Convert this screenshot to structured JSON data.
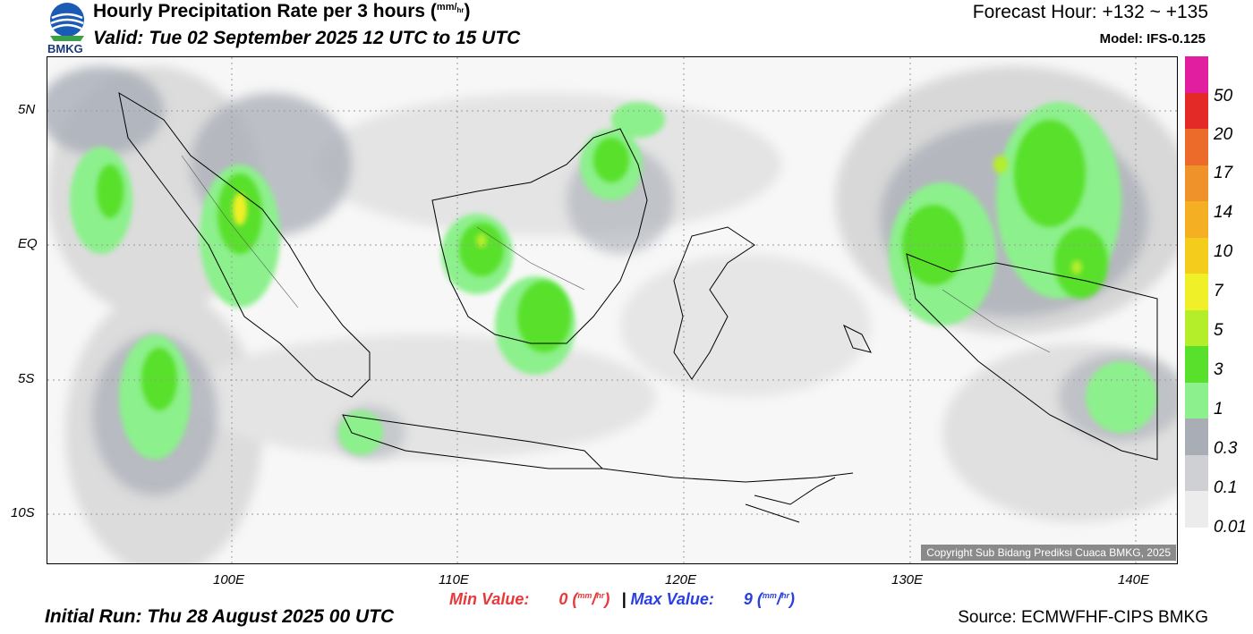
{
  "header": {
    "title_text": "Hourly Precipitation Rate per 3 hours",
    "title_unit_num": "mm",
    "title_unit_den": "hr",
    "valid": "Valid: Tue 02 September 2025 12 UTC to 15 UTC",
    "forecast_hour": "Forecast Hour: +132 ~ +135",
    "model": "Model: IFS-0.125",
    "logo_text": "BMKG"
  },
  "map": {
    "lat_labels": [
      "5N",
      "EQ",
      "5S",
      "10S"
    ],
    "lon_labels": [
      "100E",
      "110E",
      "120E",
      "130E",
      "140E"
    ],
    "copyright": "Copyright Sub Bidang Prediksi Cuaca BMKG, 2025"
  },
  "stats": {
    "min_label": "Min Value:",
    "min_value": "0",
    "separator": "|",
    "max_label": "Max Value:",
    "max_value": "9",
    "unit_num": "mm",
    "unit_den": "hr"
  },
  "footer": {
    "initial_run": "Initial Run: Thu 28 August 2025 00 UTC",
    "source": "Source: ECMWFHF-CIPS BMKG"
  },
  "legend": {
    "labels": [
      "50",
      "20",
      "17",
      "14",
      "10",
      "7",
      "5",
      "3",
      "1",
      "0.3",
      "0.1",
      "0.01"
    ],
    "colors": [
      "#e21ea0",
      "#e42a26",
      "#ec6a2a",
      "#f0922a",
      "#f4b022",
      "#f4cc1c",
      "#f0f028",
      "#b4ee2a",
      "#58e02c",
      "#8cf08c",
      "#a8adb6",
      "#cfd0d4",
      "#ececec"
    ]
  }
}
